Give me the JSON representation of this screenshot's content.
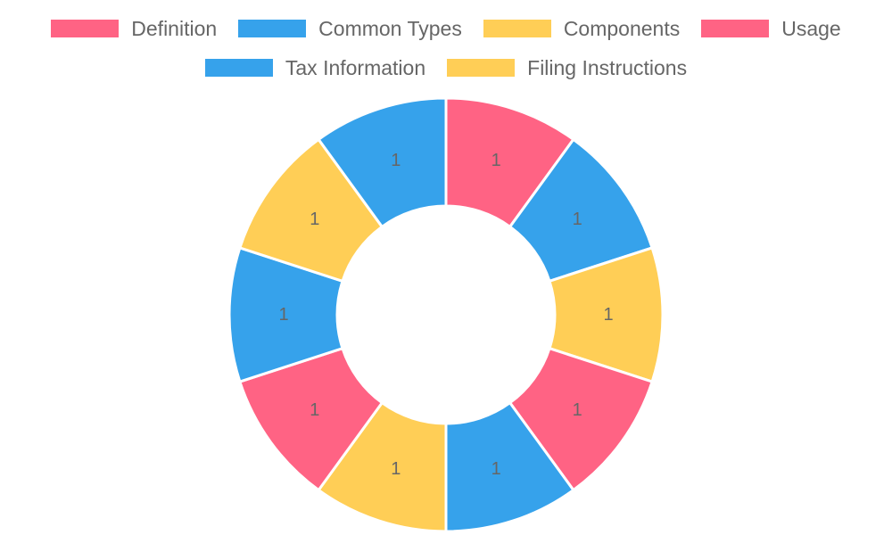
{
  "chart_data": {
    "type": "pie",
    "variant": "doughnut",
    "categories": [
      "Definition",
      "Common Types",
      "Components",
      "Usage",
      "Tax Information",
      "Filing Instructions"
    ],
    "slices": [
      {
        "label": "Definition",
        "value": 1,
        "display": "1",
        "color": "#FF6384"
      },
      {
        "label": "Common Types",
        "value": 1,
        "display": "1",
        "color": "#36A2EB"
      },
      {
        "label": "Components",
        "value": 1,
        "display": "1",
        "color": "#FFCE56"
      },
      {
        "label": "Usage",
        "value": 1,
        "display": "1",
        "color": "#FF6384"
      },
      {
        "label": "Tax Information",
        "value": 1,
        "display": "1",
        "color": "#36A2EB"
      },
      {
        "label": "Filing Instructions",
        "value": 1,
        "display": "1",
        "color": "#FFCE56"
      },
      {
        "label": "",
        "value": 1,
        "display": "1",
        "color": "#FF6384"
      },
      {
        "label": "",
        "value": 1,
        "display": "1",
        "color": "#36A2EB"
      },
      {
        "label": "",
        "value": 1,
        "display": "1",
        "color": "#FFCE56"
      },
      {
        "label": "",
        "value": 1,
        "display": "1",
        "color": "#36A2EB"
      }
    ],
    "legend": {
      "position": "top",
      "entries": [
        {
          "label": "Definition",
          "color": "#FF6384"
        },
        {
          "label": "Common Types",
          "color": "#36A2EB"
        },
        {
          "label": "Components",
          "color": "#FFCE56"
        },
        {
          "label": "Usage",
          "color": "#FF6384"
        },
        {
          "label": "Tax Information",
          "color": "#36A2EB"
        },
        {
          "label": "Filing Instructions",
          "color": "#FFCE56"
        }
      ]
    }
  }
}
